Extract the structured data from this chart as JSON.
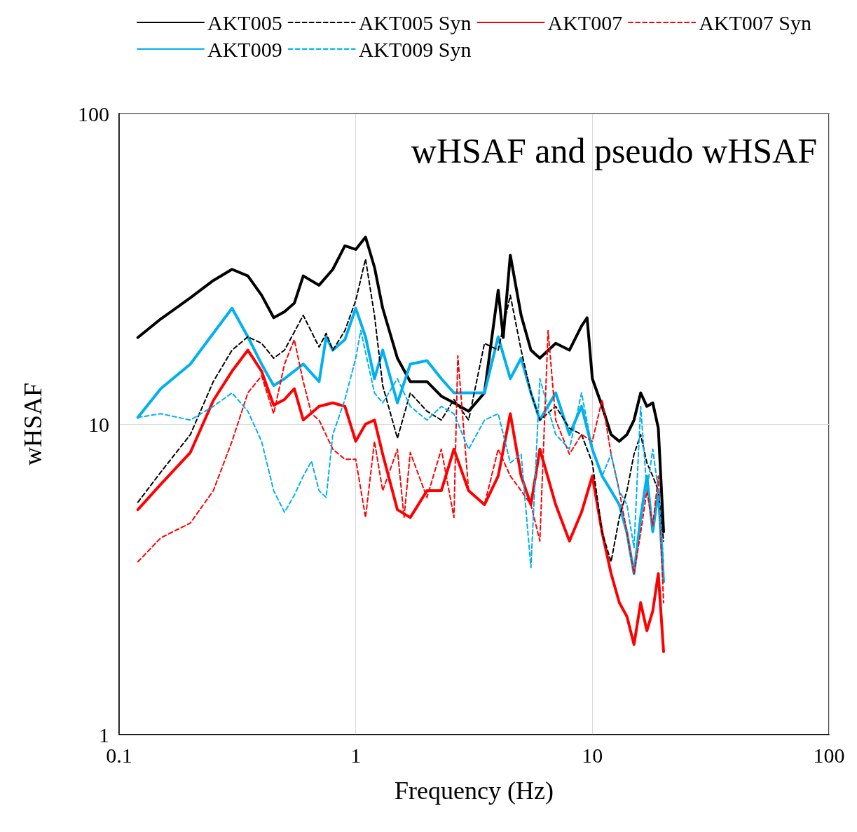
{
  "chart_data": {
    "type": "line",
    "title": "wHSAF and pseudo wHSAF",
    "xlabel": "Frequency (Hz)",
    "ylabel": "wHSAF",
    "log": "xy",
    "xlim": [
      0.1,
      100
    ],
    "ylim": [
      1,
      100
    ],
    "xticks": [
      0.1,
      1,
      10,
      100
    ],
    "yticks": [
      1,
      10,
      100
    ],
    "grid": true,
    "legend": "top",
    "marker": "none",
    "series": [
      {
        "name": "AKT005",
        "color": "#000000",
        "line_style": "solid",
        "x": [
          0.12,
          0.15,
          0.2,
          0.25,
          0.3,
          0.35,
          0.4,
          0.45,
          0.5,
          0.55,
          0.6,
          0.7,
          0.8,
          0.9,
          1.0,
          1.1,
          1.2,
          1.3,
          1.5,
          1.7,
          2.0,
          2.3,
          2.6,
          3.0,
          3.5,
          4.0,
          4.2,
          4.5,
          5,
          5.5,
          6,
          7,
          8,
          9,
          9.5,
          10,
          11,
          12,
          13,
          14,
          15,
          16,
          17,
          18,
          19,
          20
        ],
        "values": [
          19,
          21.8,
          25.5,
          29,
          31.5,
          30,
          26,
          22,
          23,
          24.5,
          30,
          28,
          31.5,
          37.5,
          36.5,
          40,
          32,
          23.6,
          16.3,
          13.7,
          13.7,
          12.3,
          11.7,
          11,
          12.6,
          27,
          19,
          35,
          22.4,
          17.3,
          16.3,
          18.2,
          17.3,
          20.7,
          22,
          14,
          11.4,
          9.25,
          8.8,
          9.25,
          10.3,
          12.6,
          11.4,
          11.7,
          9.7,
          4.5
        ]
      },
      {
        "name": "AKT005 Syn",
        "color": "#000000",
        "line_style": "dashed",
        "x": [
          0.12,
          0.15,
          0.2,
          0.25,
          0.3,
          0.35,
          0.4,
          0.45,
          0.5,
          0.6,
          0.7,
          0.75,
          0.8,
          0.9,
          1.0,
          1.1,
          1.2,
          1.3,
          1.5,
          1.7,
          2.0,
          2.3,
          2.6,
          3.0,
          3.5,
          4.0,
          4.5,
          5,
          5.5,
          6,
          7,
          8,
          9,
          10,
          11,
          12,
          13,
          14,
          15,
          16,
          17,
          18,
          19,
          20
        ],
        "values": [
          5.6,
          7,
          9.25,
          13.7,
          17.3,
          19.1,
          18.2,
          16.3,
          17.3,
          22.4,
          17.7,
          19.6,
          17.3,
          20,
          25,
          34,
          22.4,
          13.3,
          9,
          12.6,
          11,
          10.3,
          12,
          10.3,
          18.2,
          17.3,
          26,
          17.3,
          12.6,
          10.3,
          11.4,
          9.7,
          9.25,
          7.5,
          4.47,
          3.6,
          5,
          6.1,
          8,
          9.25,
          7.5,
          6.8,
          6.1,
          4.2
        ]
      },
      {
        "name": "AKT007",
        "color": "#ff0000",
        "line_style": "solid",
        "x": [
          0.12,
          0.15,
          0.2,
          0.25,
          0.3,
          0.35,
          0.4,
          0.45,
          0.5,
          0.55,
          0.6,
          0.7,
          0.8,
          0.9,
          1.0,
          1.1,
          1.2,
          1.3,
          1.5,
          1.7,
          2.0,
          2.3,
          2.6,
          3.0,
          3.5,
          4,
          4.5,
          5,
          5.5,
          6,
          7,
          8,
          9,
          10,
          11,
          12,
          13,
          14,
          15,
          16,
          17,
          18,
          19,
          20
        ],
        "values": [
          5.3,
          6.4,
          8.1,
          11.9,
          14.8,
          17.3,
          14.8,
          11.5,
          12,
          13,
          10.3,
          11.4,
          11.7,
          11.4,
          8.8,
          10,
          10.3,
          8,
          5.3,
          5,
          6.1,
          6.1,
          8.3,
          6.1,
          5.5,
          6.8,
          10.8,
          6.8,
          5.5,
          8.3,
          5.5,
          4.2,
          5.2,
          6.8,
          4.47,
          3.3,
          2.66,
          2.4,
          1.95,
          2.66,
          2.16,
          2.5,
          3.3,
          1.85
        ]
      },
      {
        "name": "AKT007 Syn",
        "color": "#ff0000",
        "line_style": "dashed",
        "x": [
          0.12,
          0.15,
          0.2,
          0.25,
          0.3,
          0.35,
          0.4,
          0.45,
          0.5,
          0.55,
          0.6,
          0.65,
          0.7,
          0.8,
          0.9,
          1.0,
          1.1,
          1.2,
          1.3,
          1.5,
          1.6,
          1.7,
          2.0,
          2.3,
          2.6,
          2.7,
          3.0,
          3.5,
          4,
          4.5,
          5,
          5.5,
          6,
          6.5,
          7,
          8,
          9,
          10,
          11,
          12,
          13,
          14,
          15,
          16,
          17,
          18,
          19,
          20
        ],
        "values": [
          3.6,
          4.3,
          4.8,
          6.1,
          8.8,
          12.6,
          14.3,
          10.8,
          15.6,
          18.7,
          13.7,
          10.8,
          10.3,
          8.3,
          7.7,
          7.7,
          5,
          8.8,
          6.1,
          8.3,
          5,
          8.1,
          5.8,
          8.3,
          5,
          16.6,
          6.1,
          5.5,
          8.3,
          6.8,
          6.1,
          5.5,
          4.2,
          20,
          10.3,
          8,
          9.25,
          8.8,
          12,
          8,
          6.1,
          4.47,
          3.3,
          4.47,
          6.1,
          4.7,
          6.8,
          2.66
        ]
      },
      {
        "name": "AKT009",
        "color": "#00b0f0",
        "line_style": "solid",
        "x": [
          0.12,
          0.15,
          0.2,
          0.25,
          0.3,
          0.35,
          0.4,
          0.45,
          0.5,
          0.6,
          0.7,
          0.75,
          0.8,
          0.9,
          1.0,
          1.1,
          1.2,
          1.3,
          1.5,
          1.7,
          2.0,
          2.3,
          2.6,
          3.0,
          3.5,
          4,
          4.5,
          5,
          5.5,
          6,
          7,
          8,
          9,
          10,
          11,
          12,
          13,
          14,
          15,
          16,
          17,
          18,
          19,
          20
        ],
        "values": [
          10.5,
          13,
          15.6,
          19.6,
          23.6,
          19.1,
          15.6,
          13.3,
          14,
          15.6,
          13.7,
          19.1,
          17.3,
          18.7,
          23.6,
          19.1,
          14,
          17.3,
          11.7,
          15.6,
          16,
          14,
          12.6,
          12.6,
          12.6,
          19.1,
          14,
          16.3,
          12.6,
          10.3,
          12.6,
          9.25,
          11.4,
          8.3,
          6.8,
          6.1,
          5.5,
          4.47,
          3.3,
          5,
          6.8,
          4.5,
          6.1,
          3.1
        ]
      },
      {
        "name": "AKT009 Syn",
        "color": "#00b0f0",
        "line_style": "dashed",
        "x": [
          0.12,
          0.15,
          0.2,
          0.25,
          0.3,
          0.35,
          0.4,
          0.45,
          0.5,
          0.55,
          0.6,
          0.65,
          0.7,
          0.75,
          0.8,
          0.9,
          1.0,
          1.05,
          1.2,
          1.3,
          1.5,
          1.7,
          2.0,
          2.3,
          2.6,
          3.0,
          3.5,
          4,
          4.5,
          5,
          5.5,
          6,
          7,
          8,
          9,
          10,
          11,
          12,
          13,
          14,
          15,
          16,
          17,
          18,
          19,
          20
        ],
        "values": [
          10.5,
          10.8,
          10.3,
          11.4,
          12.6,
          11,
          8.8,
          6.1,
          5.2,
          5.9,
          6.8,
          7.6,
          6.1,
          5.8,
          9.25,
          12,
          16.3,
          20,
          12.6,
          11.7,
          14,
          11.4,
          10.3,
          11.4,
          10.8,
          8.3,
          10.3,
          10.8,
          7.5,
          8,
          3.45,
          14,
          9.25,
          8.3,
          12.6,
          8.3,
          6.8,
          8,
          6.1,
          5.5,
          4,
          11.4,
          6.1,
          8.3,
          6.1,
          3.6
        ]
      }
    ]
  }
}
